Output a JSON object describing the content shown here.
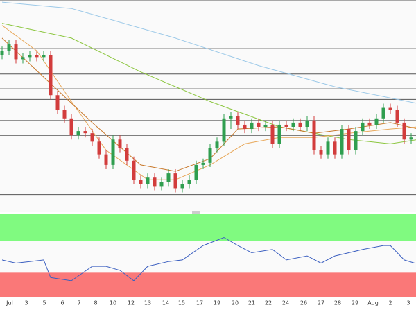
{
  "chart_data": [
    {
      "type": "candlestick",
      "xlim": [
        -0.3,
        59.7
      ],
      "ylim": [
        0,
        100
      ],
      "up_color": "#2f9e4f",
      "down_color": "#d23c3c",
      "open": [
        74,
        76,
        79,
        72,
        73,
        74,
        73,
        74,
        55,
        48,
        44,
        36,
        38,
        37,
        33,
        27,
        22,
        34,
        30,
        24,
        15,
        13,
        16,
        12,
        14,
        18,
        11,
        13,
        15,
        22,
        23,
        30,
        33,
        44,
        45,
        41,
        39,
        42,
        40,
        41,
        32,
        41,
        40,
        42,
        40,
        43,
        29,
        27,
        33,
        27,
        39,
        29,
        38,
        42,
        41,
        44,
        49,
        48,
        42,
        34
      ],
      "high": [
        78,
        81,
        81,
        75,
        76,
        76,
        76,
        76,
        57,
        50,
        46,
        40,
        40,
        39,
        35,
        29,
        36,
        36,
        32,
        26,
        17,
        18,
        18,
        16,
        20,
        20,
        15,
        17,
        24,
        25,
        32,
        35,
        46,
        47,
        47,
        43,
        44,
        44,
        43,
        43,
        43,
        43,
        44,
        44,
        45,
        45,
        31,
        35,
        35,
        41,
        41,
        40,
        44,
        44,
        46,
        51,
        51,
        50,
        44,
        37
      ],
      "low": [
        72,
        74,
        70,
        70,
        71,
        71,
        71,
        53,
        46,
        42,
        34,
        34,
        35,
        31,
        25,
        20,
        20,
        28,
        22,
        13,
        11,
        11,
        10,
        10,
        12,
        9,
        9,
        11,
        13,
        20,
        21,
        28,
        31,
        39,
        39,
        37,
        37,
        38,
        38,
        30,
        30,
        38,
        38,
        38,
        38,
        27,
        25,
        25,
        25,
        25,
        27,
        27,
        36,
        39,
        39,
        42,
        46,
        40,
        32,
        32
      ],
      "close": [
        76,
        79,
        72,
        73,
        74,
        73,
        74,
        55,
        48,
        44,
        36,
        38,
        37,
        33,
        27,
        22,
        34,
        30,
        24,
        15,
        13,
        16,
        12,
        14,
        18,
        11,
        13,
        15,
        22,
        23,
        30,
        33,
        44,
        45,
        41,
        39,
        42,
        40,
        41,
        32,
        41,
        40,
        42,
        40,
        43,
        29,
        27,
        33,
        27,
        39,
        29,
        38,
        42,
        41,
        44,
        49,
        48,
        42,
        34,
        35
      ],
      "hlines": [
        100,
        77,
        65,
        58,
        53,
        43,
        36,
        30,
        8
      ],
      "series": [
        {
          "color": "#9cc9e8",
          "x": [
            0,
            10,
            25,
            37,
            48,
            60
          ],
          "values": [
            99,
            96,
            82,
            69,
            59,
            51
          ]
        },
        {
          "color": "#8cc63f",
          "x": [
            0,
            10,
            20,
            30,
            40,
            50,
            56,
            60
          ],
          "values": [
            89,
            82,
            66,
            52,
            40,
            34,
            32,
            34
          ]
        },
        {
          "color": "#e8a85a",
          "x": [
            0,
            5,
            10,
            15,
            21,
            25,
            30,
            35,
            40,
            45,
            50,
            56,
            60
          ],
          "values": [
            88,
            76,
            52,
            29,
            15,
            15,
            22,
            32,
            35,
            35,
            37,
            39,
            40
          ]
        },
        {
          "color": "#c8782a",
          "x": [
            0,
            13,
            20,
            25,
            30,
            34,
            40,
            45,
            50,
            56,
            60
          ],
          "values": [
            82,
            42,
            22,
            19,
            25,
            39,
            40,
            37,
            39,
            42,
            39
          ]
        }
      ],
      "xticks": [
        {
          "value": 1.1,
          "label": "Jul"
        },
        {
          "value": 3.5,
          "label": "3"
        },
        {
          "value": 6.1,
          "label": "5"
        },
        {
          "value": 8.7,
          "label": "6"
        },
        {
          "value": 11.1,
          "label": "7"
        },
        {
          "value": 13.5,
          "label": "8"
        },
        {
          "value": 16,
          "label": "10"
        },
        {
          "value": 18.6,
          "label": "12"
        },
        {
          "value": 21,
          "label": "13"
        },
        {
          "value": 23.6,
          "label": "14"
        },
        {
          "value": 25.9,
          "label": "15"
        },
        {
          "value": 28.5,
          "label": "17"
        },
        {
          "value": 31,
          "label": "19"
        },
        {
          "value": 33.6,
          "label": "20"
        },
        {
          "value": 36,
          "label": "21"
        },
        {
          "value": 38.4,
          "label": "22"
        },
        {
          "value": 40.9,
          "label": "24"
        },
        {
          "value": 43.5,
          "label": "26"
        },
        {
          "value": 46,
          "label": "27"
        },
        {
          "value": 48.4,
          "label": "28"
        },
        {
          "value": 50.9,
          "label": "29"
        },
        {
          "value": 53.5,
          "label": "Aug"
        },
        {
          "value": 56,
          "label": "2"
        },
        {
          "value": 58.6,
          "label": "3"
        }
      ]
    },
    {
      "type": "line",
      "xlim": [
        -0.3,
        59.7
      ],
      "ylim": [
        0,
        103
      ],
      "bands": [
        {
          "from": 70,
          "to": 103,
          "color": "#80fa80"
        },
        {
          "from": 0,
          "to": 30,
          "color": "#fa7878"
        }
      ],
      "series": [
        {
          "color": "#3b5fc0",
          "x": [
            0,
            2,
            4,
            6,
            7,
            10,
            13,
            15,
            17,
            19,
            21,
            24,
            26,
            29,
            32,
            34,
            36,
            39,
            41,
            44,
            46,
            48,
            50,
            52,
            55,
            56,
            58,
            59.5
          ],
          "values": [
            46,
            42,
            44,
            46,
            24,
            20,
            38,
            38,
            33,
            20,
            38,
            44,
            46,
            64,
            74,
            64,
            55,
            59,
            46,
            51,
            42,
            51,
            55,
            59,
            64,
            64,
            46,
            42
          ]
        }
      ]
    }
  ]
}
